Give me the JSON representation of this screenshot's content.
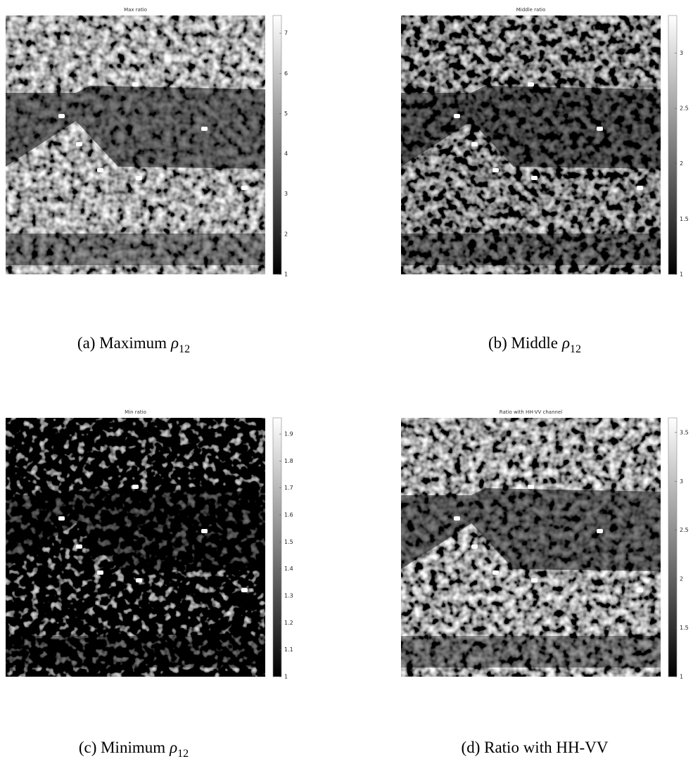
{
  "panels": [
    {
      "title": "Max ratio",
      "clim": [
        1,
        7.44
      ],
      "cticks": [
        1,
        2,
        3,
        4,
        5,
        6,
        7
      ],
      "caption": {
        "label": "(a) Maximum",
        "symbol": "ρ",
        "subscript": "12"
      }
    },
    {
      "title": "Middle ratio",
      "clim": [
        1,
        3.34
      ],
      "cticks": [
        1,
        1.5,
        2,
        2.5,
        3
      ],
      "caption": {
        "label": "(b) Middle",
        "symbol": "ρ",
        "subscript": "12"
      }
    },
    {
      "title": "Min ratio",
      "clim": [
        1,
        1.96
      ],
      "cticks": [
        1,
        1.1,
        1.2,
        1.3,
        1.4,
        1.5,
        1.6,
        1.7,
        1.8,
        1.9
      ],
      "caption": {
        "label": "(c) Minimum",
        "symbol": "ρ",
        "subscript": "12"
      }
    },
    {
      "title": "Ratio with HH-VV channel",
      "clim": [
        1,
        3.65
      ],
      "cticks": [
        1,
        1.5,
        2,
        2.5,
        3,
        3.5
      ],
      "caption": {
        "label": "(d) Ratio with HH-VV",
        "symbol": "",
        "subscript": ""
      }
    }
  ]
}
